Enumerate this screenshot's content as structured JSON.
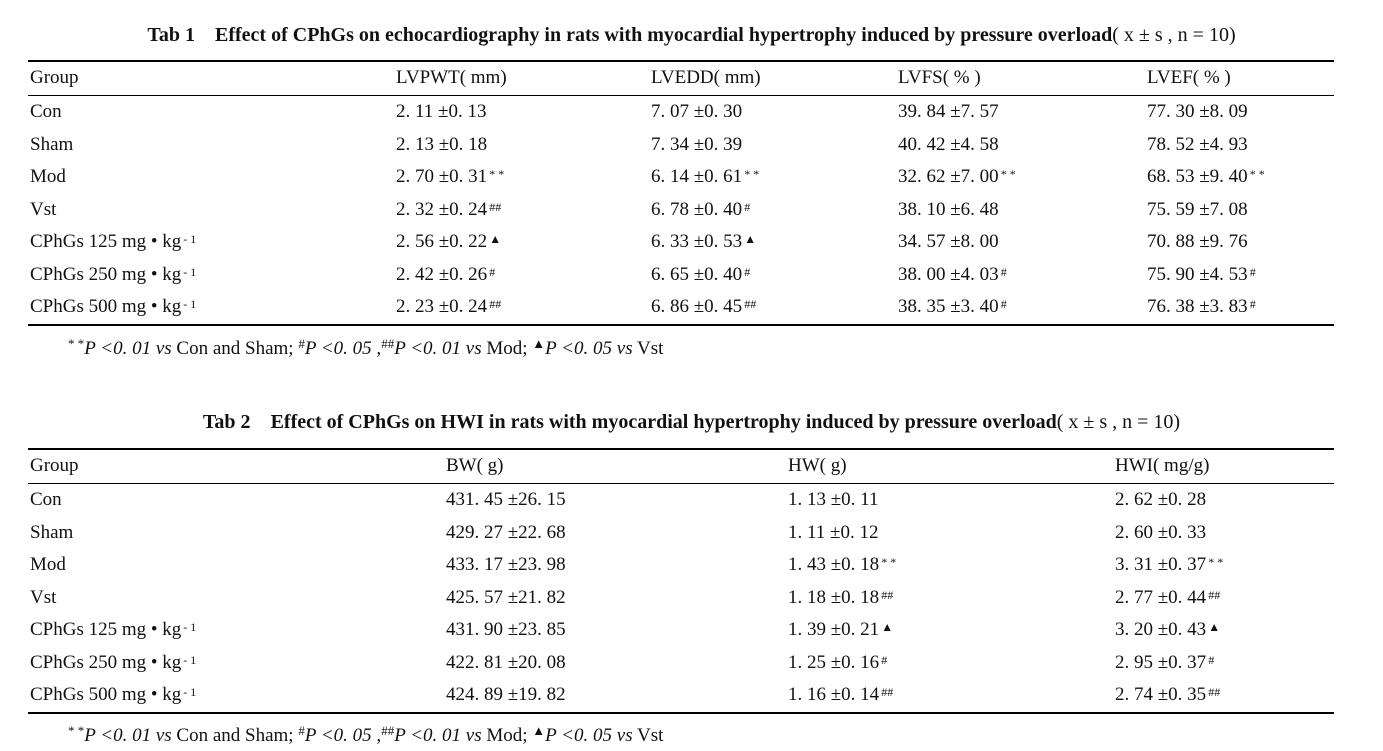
{
  "table1": {
    "label": "Tab 1",
    "title": "Effect of CPhGs on echocardiography in rats with myocardial hypertrophy induced by pressure overload",
    "condition": "( x ± s , n = 10)",
    "columns": [
      "Group",
      "LVPWT( mm)",
      "LVEDD( mm)",
      "LVFS( % )",
      "LVEF( % )"
    ],
    "rows": [
      {
        "group": "Con",
        "group_sup": "",
        "cells": [
          {
            "v": "2. 11 ±0. 13",
            "m": ""
          },
          {
            "v": "7. 07 ±0. 30",
            "m": ""
          },
          {
            "v": "39. 84 ±7. 57",
            "m": ""
          },
          {
            "v": "77. 30 ±8. 09",
            "m": ""
          }
        ]
      },
      {
        "group": "Sham",
        "group_sup": "",
        "cells": [
          {
            "v": "2. 13 ±0. 18",
            "m": ""
          },
          {
            "v": "7. 34 ±0. 39",
            "m": ""
          },
          {
            "v": "40. 42 ±4. 58",
            "m": ""
          },
          {
            "v": "78. 52 ±4. 93",
            "m": ""
          }
        ]
      },
      {
        "group": "Mod",
        "group_sup": "",
        "cells": [
          {
            "v": "2. 70 ±0. 31",
            "m": "* *"
          },
          {
            "v": "6. 14 ±0. 61",
            "m": "* *"
          },
          {
            "v": "32. 62 ±7. 00",
            "m": "* *"
          },
          {
            "v": "68. 53 ±9. 40",
            "m": "* *"
          }
        ]
      },
      {
        "group": "Vst",
        "group_sup": "",
        "cells": [
          {
            "v": "2. 32 ±0. 24",
            "m": "##"
          },
          {
            "v": "6. 78 ±0. 40",
            "m": "#"
          },
          {
            "v": "38. 10 ±6. 48",
            "m": ""
          },
          {
            "v": "75. 59 ±7. 08",
            "m": ""
          }
        ]
      },
      {
        "group": "CPhGs 125 mg • kg",
        "group_sup": "- 1",
        "cells": [
          {
            "v": "2. 56 ±0. 22",
            "m": "▲"
          },
          {
            "v": "6. 33 ±0. 53",
            "m": "▲"
          },
          {
            "v": "34. 57 ±8. 00",
            "m": ""
          },
          {
            "v": "70. 88 ±9. 76",
            "m": ""
          }
        ]
      },
      {
        "group": "CPhGs 250 mg • kg",
        "group_sup": "- 1",
        "cells": [
          {
            "v": "2. 42 ±0. 26",
            "m": "#"
          },
          {
            "v": "6. 65 ±0. 40",
            "m": "#"
          },
          {
            "v": "38. 00 ±4. 03",
            "m": "#"
          },
          {
            "v": "75. 90 ±4. 53",
            "m": "#"
          }
        ]
      },
      {
        "group": "CPhGs 500 mg • kg",
        "group_sup": "- 1",
        "cells": [
          {
            "v": "2. 23 ±0. 24",
            "m": "##"
          },
          {
            "v": "6. 86 ±0. 45",
            "m": "##"
          },
          {
            "v": "38. 35 ±3. 40",
            "m": "#"
          },
          {
            "v": "76. 38 ±3. 83",
            "m": "#"
          }
        ]
      }
    ],
    "footnote": {
      "p1_mark": "* *",
      "p1": "P <0. 01",
      "vs1": "vs",
      "cmp1": "Con and Sham;",
      "p2_mark": "#",
      "p2": "P <0. 05 ,",
      "p3_mark": "##",
      "p3": "P <0. 01",
      "vs2": "vs",
      "cmp2": "Mod;",
      "p4_mark": "▲",
      "p4": "P <0. 05",
      "vs3": "vs",
      "cmp3": "Vst"
    }
  },
  "table2": {
    "label": "Tab 2",
    "title": "Effect of CPhGs on HWI in rats with myocardial hypertrophy induced by pressure overload",
    "condition": "( x ± s , n = 10)",
    "columns": [
      "Group",
      "BW( g)",
      "HW( g)",
      "HWI( mg/g)"
    ],
    "rows": [
      {
        "group": "Con",
        "group_sup": "",
        "cells": [
          {
            "v": "431. 45 ±26. 15",
            "m": ""
          },
          {
            "v": "1. 13 ±0. 11",
            "m": ""
          },
          {
            "v": "2. 62 ±0. 28",
            "m": ""
          }
        ]
      },
      {
        "group": "Sham",
        "group_sup": "",
        "cells": [
          {
            "v": "429. 27 ±22. 68",
            "m": ""
          },
          {
            "v": "1. 11 ±0. 12",
            "m": ""
          },
          {
            "v": "2. 60 ±0. 33",
            "m": ""
          }
        ]
      },
      {
        "group": "Mod",
        "group_sup": "",
        "cells": [
          {
            "v": "433. 17 ±23. 98",
            "m": ""
          },
          {
            "v": "1. 43 ±0. 18",
            "m": "* *"
          },
          {
            "v": "3. 31 ±0. 37",
            "m": "* *"
          }
        ]
      },
      {
        "group": "Vst",
        "group_sup": "",
        "cells": [
          {
            "v": "425. 57 ±21. 82",
            "m": ""
          },
          {
            "v": "1. 18 ±0. 18",
            "m": "##"
          },
          {
            "v": "2. 77 ±0. 44",
            "m": "##"
          }
        ]
      },
      {
        "group": "CPhGs 125 mg • kg",
        "group_sup": "- 1",
        "cells": [
          {
            "v": "431. 90 ±23. 85",
            "m": ""
          },
          {
            "v": "1. 39 ±0. 21",
            "m": "▲"
          },
          {
            "v": "3. 20 ±0. 43",
            "m": "▲"
          }
        ]
      },
      {
        "group": "CPhGs 250 mg • kg",
        "group_sup": "- 1",
        "cells": [
          {
            "v": "422. 81 ±20. 08",
            "m": ""
          },
          {
            "v": "1. 25 ±0. 16",
            "m": "#"
          },
          {
            "v": "2. 95 ±0. 37",
            "m": "#"
          }
        ]
      },
      {
        "group": "CPhGs 500 mg • kg",
        "group_sup": "- 1",
        "cells": [
          {
            "v": "424. 89 ±19. 82",
            "m": ""
          },
          {
            "v": "1. 16 ±0. 14",
            "m": "##"
          },
          {
            "v": "2. 74 ±0. 35",
            "m": "##"
          }
        ]
      }
    ],
    "footnote": {
      "p1_mark": "* *",
      "p1": "P <0. 01",
      "vs1": "vs",
      "cmp1": "Con and Sham;",
      "p2_mark": "#",
      "p2": "P <0. 05 ,",
      "p3_mark": "##",
      "p3": "P <0. 01",
      "vs2": "vs",
      "cmp2": "Mod;",
      "p4_mark": "▲",
      "p4": "P <0. 05",
      "vs3": "vs",
      "cmp3": "Vst"
    }
  }
}
